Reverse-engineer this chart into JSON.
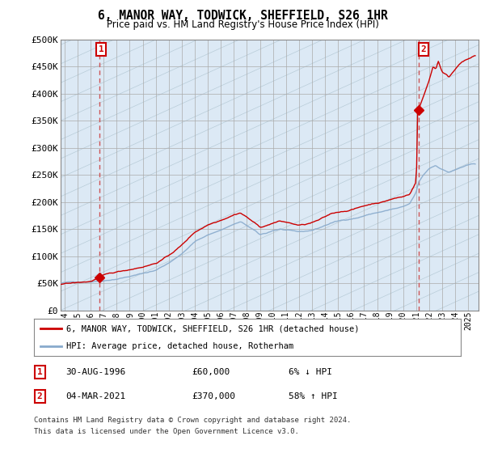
{
  "title": "6, MANOR WAY, TODWICK, SHEFFIELD, S26 1HR",
  "subtitle": "Price paid vs. HM Land Registry's House Price Index (HPI)",
  "ytick_labels": [
    "£0",
    "£50K",
    "£100K",
    "£150K",
    "£200K",
    "£250K",
    "£300K",
    "£350K",
    "£400K",
    "£450K",
    "£500K"
  ],
  "ytick_values": [
    0,
    50000,
    100000,
    150000,
    200000,
    250000,
    300000,
    350000,
    400000,
    450000,
    500000
  ],
  "ylim": [
    0,
    500000
  ],
  "xlim_start": 1993.7,
  "xlim_end": 2025.8,
  "xtick_years": [
    1994,
    1995,
    1996,
    1997,
    1998,
    1999,
    2000,
    2001,
    2002,
    2003,
    2004,
    2005,
    2006,
    2007,
    2008,
    2009,
    2010,
    2011,
    2012,
    2013,
    2014,
    2015,
    2016,
    2017,
    2018,
    2019,
    2020,
    2021,
    2022,
    2023,
    2024,
    2025
  ],
  "sale1_x": 1996.66,
  "sale1_y": 60000,
  "sale2_x": 2021.17,
  "sale2_y": 370000,
  "sale_color": "#cc0000",
  "hpi_color": "#88aacc",
  "dashed_color": "#cc4444",
  "sale1_label": "1",
  "sale2_label": "2",
  "sale1_date": "30-AUG-1996",
  "sale1_price": "£60,000",
  "sale1_hpi": "6% ↓ HPI",
  "sale2_date": "04-MAR-2021",
  "sale2_price": "£370,000",
  "sale2_hpi": "58% ↑ HPI",
  "legend_label_sale": "6, MANOR WAY, TODWICK, SHEFFIELD, S26 1HR (detached house)",
  "legend_label_hpi": "HPI: Average price, detached house, Rotherham",
  "footer_line1": "Contains HM Land Registry data © Crown copyright and database right 2024.",
  "footer_line2": "This data is licensed under the Open Government Licence v3.0.",
  "bg_color": "#dce9f5",
  "hatch_bg": "#c8d8e8"
}
